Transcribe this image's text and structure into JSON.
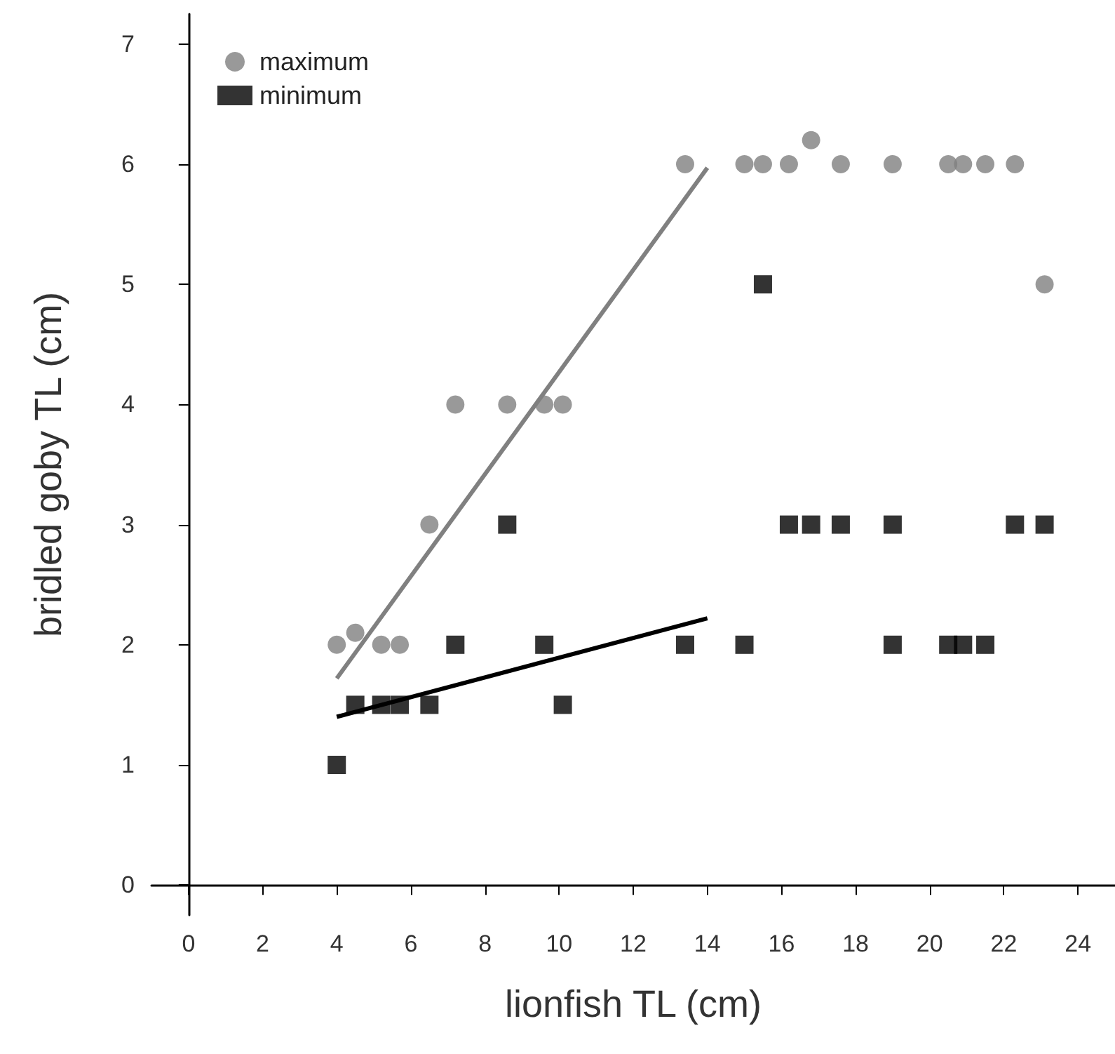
{
  "chart_data": {
    "type": "scatter",
    "xlabel": "lionfish TL (cm)",
    "ylabel": "bridled goby TL (cm)",
    "xlim": [
      -1,
      25
    ],
    "xticks": [
      0,
      2,
      4,
      6,
      8,
      10,
      12,
      14,
      16,
      18,
      20,
      22,
      24
    ],
    "ylim": [
      -0.25,
      7.25
    ],
    "yticks": [
      0,
      1,
      2,
      3,
      4,
      5,
      6,
      7
    ],
    "grid": false,
    "legend": "top left",
    "series": [
      {
        "name": "maximum",
        "color": "#808080",
        "marker": "circle",
        "x": [
          4.0,
          4.5,
          5.2,
          5.7,
          6.5,
          7.2,
          8.6,
          9.6,
          10.1,
          13.4,
          15.0,
          15.5,
          16.2,
          16.8,
          17.6,
          19.0,
          20.5,
          20.9,
          21.5,
          22.3,
          23.1
        ],
        "values": [
          2,
          2.1,
          2,
          2,
          3,
          4,
          4,
          4,
          4,
          6,
          6,
          6,
          6,
          6.2,
          6,
          6,
          6,
          6,
          6,
          6,
          5
        ]
      },
      {
        "name": "minimum",
        "color": "#000000",
        "marker": "square",
        "x": [
          4.0,
          4.5,
          5.2,
          5.7,
          6.5,
          7.2,
          8.6,
          9.6,
          10.1,
          13.4,
          15.0,
          15.5,
          16.2,
          16.8,
          17.6,
          19.0,
          19.0,
          20.5,
          20.9,
          21.5,
          22.3,
          23.1
        ],
        "values": [
          1,
          1.5,
          1.5,
          1.5,
          1.5,
          2,
          3,
          2,
          1.5,
          2,
          2,
          5,
          3,
          3,
          3,
          3,
          2,
          2,
          2,
          2,
          3,
          3
        ]
      },
      {
        "type": "line",
        "color": "#808080",
        "x": [
          4,
          14
        ],
        "values": [
          1.72,
          5.97
        ]
      },
      {
        "type": "line",
        "color": "#000000",
        "x": [
          4,
          14
        ],
        "values": [
          1.4,
          2.22
        ]
      }
    ]
  }
}
